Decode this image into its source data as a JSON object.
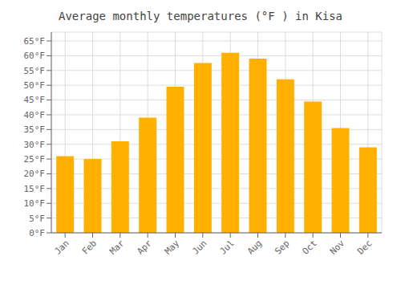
{
  "chart_data": {
    "type": "bar",
    "title": "Average monthly temperatures (°F ) in Kisa",
    "categories": [
      "Jan",
      "Feb",
      "Mar",
      "Apr",
      "May",
      "Jun",
      "Jul",
      "Aug",
      "Sep",
      "Oct",
      "Nov",
      "Dec"
    ],
    "values": [
      26,
      25,
      31,
      39,
      49.5,
      57.5,
      61,
      59,
      52,
      44.5,
      35.5,
      29
    ],
    "color": "#ffb000",
    "ylim": [
      0,
      68
    ],
    "yticks": [
      {
        "value": 0,
        "label": "0°F"
      },
      {
        "value": 5,
        "label": "5°F"
      },
      {
        "value": 10,
        "label": "10°F"
      },
      {
        "value": 15,
        "label": "15°F"
      },
      {
        "value": 20,
        "label": "20°F"
      },
      {
        "value": 25,
        "label": "25°F"
      },
      {
        "value": 30,
        "label": "30°F"
      },
      {
        "value": 35,
        "label": "35°F"
      },
      {
        "value": 40,
        "label": "40°F"
      },
      {
        "value": 45,
        "label": "45°F"
      },
      {
        "value": 50,
        "label": "50°F"
      },
      {
        "value": 55,
        "label": "55°F"
      },
      {
        "value": 60,
        "label": "60°F"
      },
      {
        "value": 65,
        "label": "65°F"
      }
    ],
    "grid": true
  }
}
